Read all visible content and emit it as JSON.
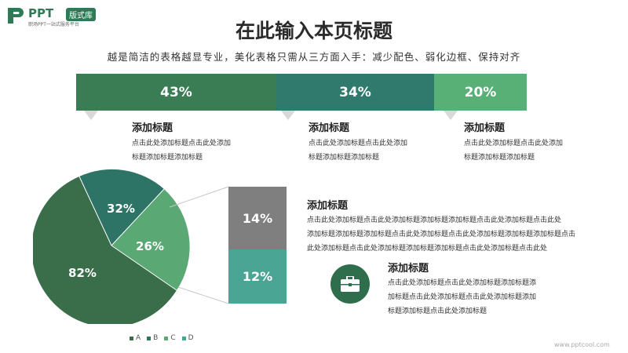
{
  "logo": {
    "text": "PPT",
    "badge": "版式库",
    "sub": "职场PPT一站式服务平台"
  },
  "title": "在此输入本页标题",
  "subtitle": "越是简洁的表格越显专业，美化表格只需从三方面入手：减少配色、弱化边框、保持对齐",
  "bars": [
    {
      "label": "43%",
      "color": "#3a7d54"
    },
    {
      "label": "34%",
      "color": "#2f7a6c"
    },
    {
      "label": "20%",
      "color": "#58b076"
    }
  ],
  "top_blocks": [
    {
      "title": "添加标题",
      "line1": "点击此处添加标题点击此处添加",
      "line2": "标题添加标题添加标题"
    },
    {
      "title": "添加标题",
      "line1": "点击此处添加标题点击此处添加",
      "line2": "标题添加标题添加标题"
    },
    {
      "title": "添加标题",
      "line1": "点击此处添加标题点击此处添加",
      "line2": "标题添加标题添加标题"
    }
  ],
  "pie": {
    "labels": [
      "82%",
      "32%",
      "26%"
    ],
    "legend": [
      "A",
      "B",
      "C",
      "D"
    ],
    "colors": {
      "A": "#3a6e4b",
      "B": "#2e7466",
      "C": "#5aa873",
      "D": "#4aa595"
    }
  },
  "stack": [
    {
      "label": "14%",
      "color": "#7f7f7f"
    },
    {
      "label": "12%",
      "color": "#4aa595"
    }
  ],
  "right_block": {
    "title": "添加标题",
    "line1": "点击此处添加标题点击此处添加标题添加标题添加标题点击此处添加标题点击此处",
    "line2": "添加标题添加标题添加标题点击此处添加标题点击此处添加标题添加标题添加标题点击",
    "line3": "此处添加标题点击此处添加标题添加标题添加标题点击此处添加标题点击此处"
  },
  "icon_block": {
    "icon": "briefcase-icon",
    "title": "添加标题",
    "line1": "点击此处添加标题点击此处添加标题添加标题添",
    "line2": "加标题点击此处添加标题点击此处添加标题添加",
    "line3": "标题添加标题点击此处添加标题"
  },
  "watermark": "www.pptcool.com"
}
